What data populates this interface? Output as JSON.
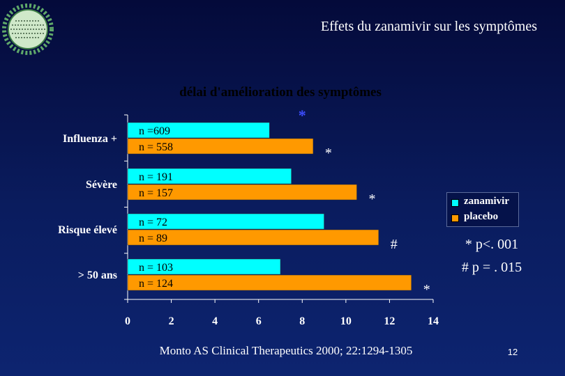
{
  "slide": {
    "title": "Effets du zanamivir sur les symptômes",
    "citation": "Monto AS Clinical Therapeutics 2000; 22:1294-1305",
    "page_number": "12",
    "notes": [
      "* p<. 001",
      "# p = . 015"
    ]
  },
  "colors": {
    "zanamivir": "#00ffff",
    "placebo": "#ff9900",
    "text": "#ffffff"
  },
  "logo": {
    "icon": "virus-icon"
  },
  "chart_data": {
    "type": "bar",
    "orientation": "horizontal",
    "title": "délai d'amélioration des symptômes",
    "categories": [
      "Influenza +",
      "Sévère",
      "Risque élevé",
      "> 50 ans"
    ],
    "series": [
      {
        "name": "zanamivir",
        "values": [
          6.5,
          7.5,
          9.0,
          7.0
        ],
        "n_labels": [
          "n =609",
          "n = 191",
          "n = 72",
          "n = 103"
        ]
      },
      {
        "name": "placebo",
        "values": [
          8.5,
          10.5,
          11.5,
          13.0
        ],
        "n_labels": [
          "n = 558",
          "n = 157",
          "n = 89",
          "n = 124"
        ]
      }
    ],
    "xlim": [
      0,
      14
    ],
    "xticks": [
      "0",
      "2",
      "4",
      "6",
      "8",
      "10",
      "12",
      "14"
    ],
    "significance": [
      {
        "category": "Influenza +",
        "marker": "*"
      },
      {
        "category": "Sévère",
        "marker": "*"
      },
      {
        "category": "Risque élevé",
        "marker": "#"
      },
      {
        "category": "> 50 ans",
        "marker": "*"
      }
    ],
    "reference_marker": {
      "value": 8,
      "marker": "*"
    },
    "legend_position": "right",
    "grid": false
  }
}
